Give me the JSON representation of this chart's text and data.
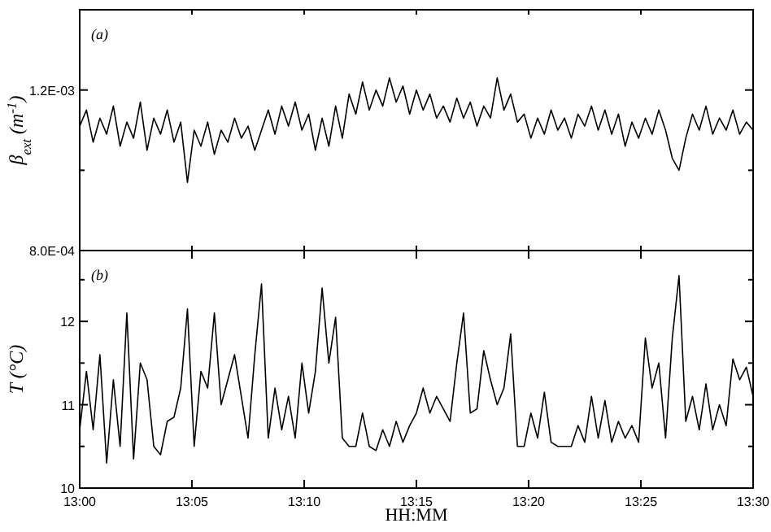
{
  "chart_data": [
    {
      "type": "line",
      "ylabel": "β$_{ext}$ (m$^{-1}$)",
      "annotations": [
        "(a)"
      ],
      "tick_labels": "y",
      "xlim": [
        13,
        13.5
      ],
      "xticks": [
        {
          "value": 13,
          "label": null
        },
        {
          "value": 13.0833,
          "label": null
        },
        {
          "value": 13.1667,
          "label": null
        },
        {
          "value": 13.25,
          "label": null
        },
        {
          "value": 13.3333,
          "label": null
        },
        {
          "value": 13.4167,
          "label": null
        },
        {
          "value": 13.5,
          "label": null
        }
      ],
      "ylim": [
        0.0008,
        0.0014
      ],
      "yticks": [
        {
          "value": 0.0008,
          "label": "8.0E-04"
        },
        {
          "value": 0.001,
          "label": null
        },
        {
          "value": 0.0012,
          "label": "1.2E-03"
        }
      ],
      "x": [
        13,
        13.005,
        13.01,
        13.015,
        13.02,
        13.025,
        13.03,
        13.035,
        13.04,
        13.045,
        13.05,
        13.055,
        13.06,
        13.065,
        13.07,
        13.075,
        13.08,
        13.085,
        13.09,
        13.095,
        13.1,
        13.105,
        13.11,
        13.115,
        13.12,
        13.125,
        13.13,
        13.135,
        13.14,
        13.145,
        13.15,
        13.155,
        13.16,
        13.165,
        13.17,
        13.175,
        13.18,
        13.185,
        13.19,
        13.195,
        13.2,
        13.205,
        13.21,
        13.215,
        13.22,
        13.225,
        13.23,
        13.235,
        13.24,
        13.245,
        13.25,
        13.255,
        13.26,
        13.265,
        13.27,
        13.275,
        13.28,
        13.285,
        13.29,
        13.295,
        13.3,
        13.305,
        13.31,
        13.315,
        13.32,
        13.325,
        13.33,
        13.335,
        13.34,
        13.345,
        13.35,
        13.355,
        13.36,
        13.365,
        13.37,
        13.375,
        13.38,
        13.385,
        13.39,
        13.395,
        13.4,
        13.405,
        13.41,
        13.415,
        13.42,
        13.425,
        13.43,
        13.435,
        13.44,
        13.445,
        13.45,
        13.455,
        13.46,
        13.465,
        13.47,
        13.475,
        13.48,
        13.485,
        13.49,
        13.495,
        13.5
      ],
      "series": [
        {
          "color": "#000000",
          "values": [
            0.00111,
            0.00115,
            0.00107,
            0.00113,
            0.00109,
            0.00116,
            0.00106,
            0.00112,
            0.00108,
            0.00117,
            0.00105,
            0.00113,
            0.00109,
            0.00115,
            0.00107,
            0.00112,
            0.00097,
            0.0011,
            0.00106,
            0.00112,
            0.00104,
            0.0011,
            0.00107,
            0.00113,
            0.00108,
            0.00111,
            0.00105,
            0.0011,
            0.00115,
            0.00109,
            0.00116,
            0.00111,
            0.00117,
            0.0011,
            0.00114,
            0.00105,
            0.00113,
            0.00106,
            0.00116,
            0.00108,
            0.00119,
            0.00114,
            0.00122,
            0.00115,
            0.0012,
            0.00116,
            0.00123,
            0.00117,
            0.00121,
            0.00114,
            0.0012,
            0.00115,
            0.00119,
            0.00113,
            0.00116,
            0.00112,
            0.00118,
            0.00113,
            0.00117,
            0.00111,
            0.00116,
            0.00113,
            0.00123,
            0.00115,
            0.00119,
            0.00112,
            0.00114,
            0.00108,
            0.00113,
            0.00109,
            0.00115,
            0.0011,
            0.00113,
            0.00108,
            0.00114,
            0.00111,
            0.00116,
            0.0011,
            0.00115,
            0.00109,
            0.00114,
            0.00106,
            0.00112,
            0.00108,
            0.00113,
            0.00109,
            0.00115,
            0.0011,
            0.00103,
            0.001,
            0.00108,
            0.00114,
            0.0011,
            0.00116,
            0.00109,
            0.00113,
            0.0011,
            0.00115,
            0.00109,
            0.00112,
            0.0011
          ]
        }
      ]
    },
    {
      "type": "line",
      "ylabel": "T (°C)",
      "xlabel": "HH:MM",
      "annotations": [
        "(b)"
      ],
      "xlim": [
        13,
        13.5
      ],
      "xticks": [
        {
          "value": 13,
          "label": "13:00"
        },
        {
          "value": 13.0833,
          "label": "13:05"
        },
        {
          "value": 13.1667,
          "label": "13:10"
        },
        {
          "value": 13.25,
          "label": "13:15"
        },
        {
          "value": 13.3333,
          "label": "13:20"
        },
        {
          "value": 13.4167,
          "label": "13:25"
        },
        {
          "value": 13.5,
          "label": "13:30"
        }
      ],
      "ylim": [
        10,
        12.85
      ],
      "yticks": [
        10,
        {
          "value": 10.5,
          "label": null
        },
        11,
        {
          "value": 11.5,
          "label": null
        },
        12,
        {
          "value": 12.5,
          "label": null
        }
      ],
      "x": [
        13,
        13.005,
        13.01,
        13.015,
        13.02,
        13.025,
        13.03,
        13.035,
        13.04,
        13.045,
        13.05,
        13.055,
        13.06,
        13.065,
        13.07,
        13.075,
        13.08,
        13.085,
        13.09,
        13.095,
        13.1,
        13.105,
        13.11,
        13.115,
        13.12,
        13.125,
        13.13,
        13.135,
        13.14,
        13.145,
        13.15,
        13.155,
        13.16,
        13.165,
        13.17,
        13.175,
        13.18,
        13.185,
        13.19,
        13.195,
        13.2,
        13.205,
        13.21,
        13.215,
        13.22,
        13.225,
        13.23,
        13.235,
        13.24,
        13.245,
        13.25,
        13.255,
        13.26,
        13.265,
        13.27,
        13.275,
        13.28,
        13.285,
        13.29,
        13.295,
        13.3,
        13.305,
        13.31,
        13.315,
        13.32,
        13.325,
        13.33,
        13.335,
        13.34,
        13.345,
        13.35,
        13.355,
        13.36,
        13.365,
        13.37,
        13.375,
        13.38,
        13.385,
        13.39,
        13.395,
        13.4,
        13.405,
        13.41,
        13.415,
        13.42,
        13.425,
        13.43,
        13.435,
        13.44,
        13.445,
        13.45,
        13.455,
        13.46,
        13.465,
        13.47,
        13.475,
        13.48,
        13.485,
        13.49,
        13.495,
        13.5
      ],
      "series": [
        {
          "color": "#000000",
          "values": [
            10.7,
            11.4,
            10.7,
            11.6,
            10.3,
            11.3,
            10.5,
            12.1,
            10.35,
            11.5,
            11.3,
            10.5,
            10.4,
            10.8,
            10.85,
            11.2,
            12.15,
            10.5,
            11.4,
            11.2,
            12.1,
            11.0,
            11.3,
            11.6,
            11.1,
            10.6,
            11.6,
            12.45,
            10.6,
            11.2,
            10.7,
            11.1,
            10.6,
            11.5,
            10.9,
            11.4,
            12.4,
            11.5,
            12.05,
            10.6,
            10.5,
            10.5,
            10.9,
            10.5,
            10.45,
            10.7,
            10.5,
            10.8,
            10.55,
            10.75,
            10.9,
            11.2,
            10.9,
            11.1,
            10.95,
            10.8,
            11.5,
            12.1,
            10.9,
            10.95,
            11.65,
            11.3,
            11.0,
            11.2,
            11.85,
            10.5,
            10.5,
            10.9,
            10.6,
            11.15,
            10.55,
            10.5,
            10.5,
            10.5,
            10.75,
            10.55,
            11.1,
            10.6,
            11.05,
            10.55,
            10.8,
            10.6,
            10.75,
            10.55,
            11.8,
            11.2,
            11.5,
            10.6,
            11.8,
            12.55,
            10.8,
            11.1,
            10.7,
            11.25,
            10.7,
            11.0,
            10.75,
            11.55,
            11.3,
            11.45,
            11.1
          ]
        }
      ]
    }
  ]
}
